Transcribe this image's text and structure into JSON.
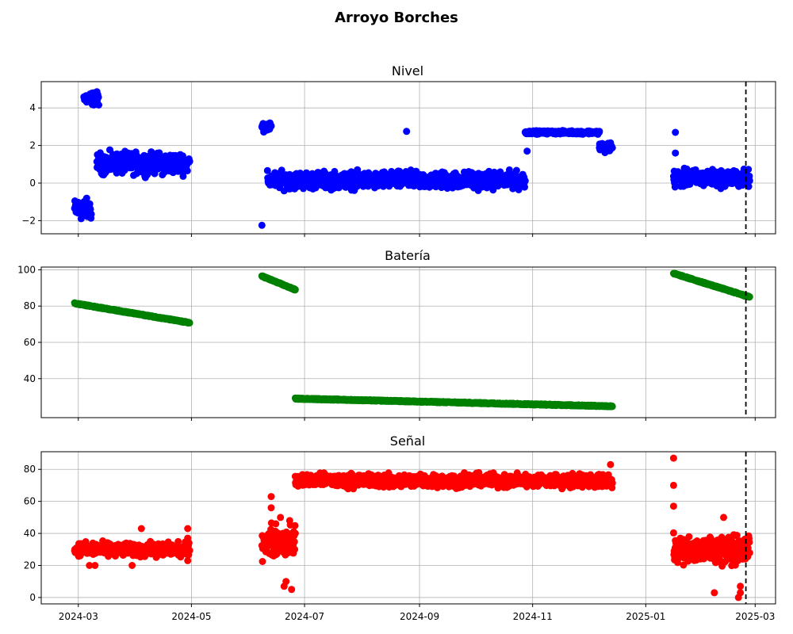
{
  "figure": {
    "title": "Arroyo Borches"
  },
  "colors": {
    "nivel": "#0000ff",
    "bateria": "#008000",
    "senal": "#ff0000",
    "grid": "#b0b0b0",
    "vline": "#000000"
  },
  "x_axis": {
    "ticks": [
      {
        "date": "2024-03-01",
        "label": "2024-03"
      },
      {
        "date": "2024-05-01",
        "label": "2024-05"
      },
      {
        "date": "2024-07-01",
        "label": "2024-07"
      },
      {
        "date": "2024-09-01",
        "label": "2024-09"
      },
      {
        "date": "2024-11-01",
        "label": "2024-11"
      },
      {
        "date": "2025-01-01",
        "label": "2025-01"
      },
      {
        "date": "2025-03-01",
        "label": "2025-03"
      }
    ],
    "range": [
      "2024-02-10",
      "2025-03-12"
    ]
  },
  "chart_data": [
    {
      "type": "scatter",
      "title": "Nivel",
      "ylim": [
        -2.7,
        5.4
      ],
      "yticks": [
        -2,
        0,
        2,
        4
      ],
      "grid": true,
      "vline_date": "2025-02-24",
      "segments": [
        {
          "start": "2024-02-28",
          "end": "2024-03-08",
          "base": -1.4,
          "spread": 0.8
        },
        {
          "start": "2024-03-04",
          "end": "2024-03-12",
          "base": 4.5,
          "spread": 0.5
        },
        {
          "start": "2024-03-11",
          "end": "2024-04-30",
          "base": 1.05,
          "spread": 0.8
        },
        {
          "start": "2024-06-08",
          "end": "2024-06-13",
          "base": 3.0,
          "spread": 0.35
        },
        {
          "start": "2024-06-11",
          "end": "2024-10-28",
          "base": 0.15,
          "spread": 0.65
        },
        {
          "start": "2024-10-28",
          "end": "2024-12-07",
          "base": 2.7,
          "spread": 0.12
        },
        {
          "start": "2024-12-07",
          "end": "2024-12-14",
          "base": 1.9,
          "spread": 0.4
        },
        {
          "start": "2025-01-16",
          "end": "2025-02-26",
          "base": 0.25,
          "spread": 0.65
        }
      ],
      "points": [
        {
          "x": "2024-06-08",
          "y": -2.25
        },
        {
          "x": "2024-08-25",
          "y": 2.75
        },
        {
          "x": "2025-01-17",
          "y": 2.7
        },
        {
          "x": "2025-01-17",
          "y": 1.6
        },
        {
          "x": "2024-10-29",
          "y": 1.7
        }
      ]
    },
    {
      "type": "scatter",
      "title": "Batería",
      "ylim": [
        18.5,
        101.5
      ],
      "yticks": [
        40,
        60,
        80,
        100
      ],
      "grid": true,
      "vline_date": "2025-02-24",
      "segments": [
        {
          "start": "2024-02-28",
          "end": "2024-04-30",
          "from": 81.5,
          "to": 70.8
        },
        {
          "start": "2024-06-08",
          "end": "2024-06-26",
          "from": 96.5,
          "to": 89.0
        },
        {
          "start": "2024-06-26",
          "end": "2024-12-14",
          "from": 29.0,
          "to": 24.8
        },
        {
          "start": "2025-01-16",
          "end": "2025-02-26",
          "from": 98.0,
          "to": 85.0
        }
      ]
    },
    {
      "type": "scatter",
      "title": "Señal",
      "ylim": [
        -4,
        91
      ],
      "yticks": [
        0,
        20,
        40,
        60,
        80
      ],
      "grid": true,
      "vline_date": "2025-02-24",
      "segments": [
        {
          "start": "2024-02-28",
          "end": "2024-04-30",
          "base": 30,
          "spread": 6
        },
        {
          "start": "2024-06-08",
          "end": "2024-06-26",
          "base": 35,
          "spread": 14
        },
        {
          "start": "2024-06-26",
          "end": "2024-12-14",
          "base": 73,
          "spread": 6
        },
        {
          "start": "2025-01-16",
          "end": "2025-02-26",
          "base": 30,
          "spread": 12
        }
      ],
      "points": [
        {
          "x": "2025-01-16",
          "y": 87
        },
        {
          "x": "2025-01-16",
          "y": 70
        },
        {
          "x": "2025-01-16",
          "y": 57
        },
        {
          "x": "2024-06-13",
          "y": 63
        },
        {
          "x": "2024-06-13",
          "y": 56
        },
        {
          "x": "2024-06-18",
          "y": 50
        },
        {
          "x": "2024-06-20",
          "y": 7
        },
        {
          "x": "2024-06-21",
          "y": 10
        },
        {
          "x": "2024-06-23",
          "y": 48
        },
        {
          "x": "2024-06-24",
          "y": 5
        },
        {
          "x": "2024-03-07",
          "y": 20
        },
        {
          "x": "2024-03-10",
          "y": 20
        },
        {
          "x": "2024-04-04",
          "y": 43
        },
        {
          "x": "2024-03-30",
          "y": 20
        },
        {
          "x": "2024-04-29",
          "y": 43
        },
        {
          "x": "2024-04-29",
          "y": 37
        },
        {
          "x": "2024-04-29",
          "y": 23
        },
        {
          "x": "2024-12-13",
          "y": 83
        },
        {
          "x": "2024-12-13",
          "y": 70
        },
        {
          "x": "2025-02-20",
          "y": 0
        },
        {
          "x": "2025-02-21",
          "y": 3
        },
        {
          "x": "2025-02-21",
          "y": 7
        },
        {
          "x": "2025-02-07",
          "y": 3
        },
        {
          "x": "2025-02-12",
          "y": 50
        }
      ]
    }
  ]
}
